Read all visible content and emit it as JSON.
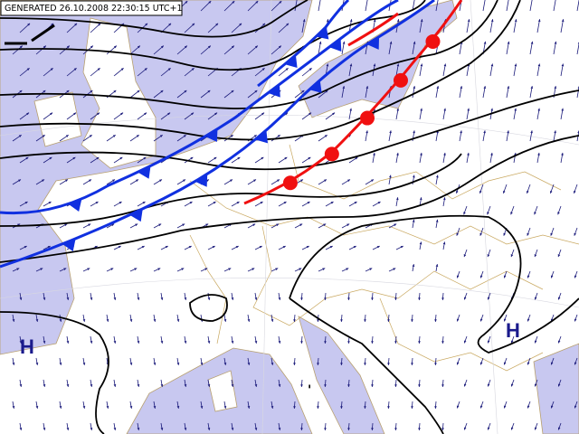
{
  "header": {
    "label": "GENERATED 26.10.2008 22:30:15 UTC+1"
  },
  "pressure_centers": [
    {
      "label": "H"
    },
    {
      "label": "H"
    }
  ]
}
